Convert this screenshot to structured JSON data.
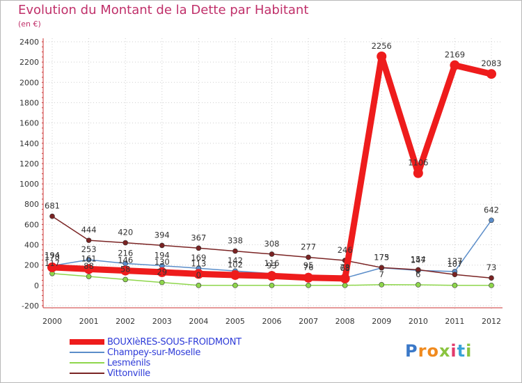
{
  "header": {
    "title": "Evolution du Montant de la Dette par Habitant",
    "subtitle": "(en €)"
  },
  "chart_data": {
    "type": "line",
    "title": "Evolution du Montant de la Dette par Habitant",
    "subtitle": "(en €)",
    "xlabel": "",
    "ylabel": "",
    "categories": [
      "2000",
      "2001",
      "2002",
      "2003",
      "2004",
      "2005",
      "2006",
      "2007",
      "2008",
      "2009",
      "2010",
      "2011",
      "2012"
    ],
    "ylim": [
      -200,
      2400
    ],
    "yticks": [
      -200,
      0,
      200,
      400,
      600,
      800,
      1000,
      1200,
      1400,
      1600,
      1800,
      2000,
      2200,
      2400
    ],
    "grid": true,
    "legend_position": "bottom-left",
    "series": [
      {
        "name": "BOUXIèRES-SOUS-FROIDMONT",
        "color": "#ee1c1c",
        "emphasis": true,
        "values": [
          178,
          161,
          146,
          130,
          113,
          102,
          93,
          76,
          68,
          2256,
          1106,
          2169,
          2083
        ],
        "labels": [
          "178",
          "161",
          "146",
          "130",
          "113",
          "102",
          "93",
          "76",
          "68",
          "2256",
          "1106",
          "2169",
          "2083"
        ]
      },
      {
        "name": "Champey-sur-Moselle",
        "color": "#5b8dc9",
        "emphasis": false,
        "values": [
          194,
          253,
          216,
          194,
          169,
          142,
          116,
          95,
          73,
          173,
          147,
          137,
          642
        ],
        "labels": [
          "194",
          "253",
          "216",
          "194",
          "169",
          "142",
          "116",
          "95",
          "73",
          "173",
          "147",
          "137",
          "642"
        ]
      },
      {
        "name": "Lesménils",
        "color": "#8ed64b",
        "emphasis": false,
        "values": [
          117,
          88,
          58,
          29,
          0,
          0,
          0,
          0,
          0,
          7,
          6,
          0,
          0
        ],
        "labels": [
          "117",
          "88",
          "58",
          "29",
          "0",
          "",
          "",
          "",
          "",
          "7",
          "6",
          "",
          ""
        ]
      },
      {
        "name": "Vittonville",
        "color": "#7a2323",
        "emphasis": false,
        "values": [
          681,
          444,
          420,
          394,
          367,
          338,
          308,
          277,
          246,
          175,
          154,
          107,
          73
        ],
        "labels": [
          "681",
          "444",
          "420",
          "394",
          "367",
          "338",
          "308",
          "277",
          "246",
          "175",
          "154",
          "107",
          "73"
        ]
      }
    ]
  },
  "legend": {
    "items": [
      {
        "label": "BOUXIèRES-SOUS-FROIDMONT",
        "color": "#ee1c1c"
      },
      {
        "label": "Champey-sur-Moselle",
        "color": "#5b8dc9"
      },
      {
        "label": "Lesménils",
        "color": "#8ed64b"
      },
      {
        "label": "Vittonville",
        "color": "#7a2323"
      }
    ]
  },
  "logo": {
    "letters": [
      "P",
      "r",
      "o",
      "x",
      "i",
      "t",
      "i"
    ],
    "colors": [
      "#3a78c8",
      "#f08a1e",
      "#f08a1e",
      "#8ac43f",
      "#e23a6b",
      "#3aa3d8",
      "#8ac43f"
    ]
  }
}
